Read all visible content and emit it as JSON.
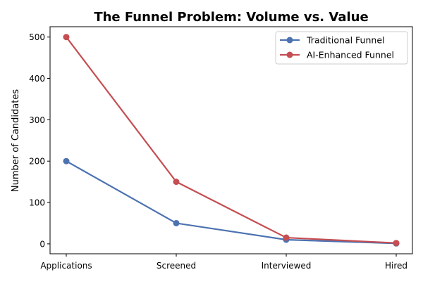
{
  "chart_data": {
    "type": "line",
    "title": "The Funnel Problem: Volume vs. Value",
    "xlabel": "",
    "ylabel": "Number of Candidates",
    "categories": [
      "Applications",
      "Screened",
      "Interviewed",
      "Hired"
    ],
    "ylim": [
      -24,
      525
    ],
    "yticks": [
      0,
      100,
      200,
      300,
      400,
      500
    ],
    "grid": false,
    "legend": "top-right",
    "series": [
      {
        "name": "Traditional Funnel",
        "values": [
          200,
          50,
          10,
          1
        ],
        "color": "#4c72b0"
      },
      {
        "name": "AI-Enhanced Funnel",
        "values": [
          500,
          150,
          15,
          2
        ],
        "color": "#c44e52"
      }
    ]
  }
}
